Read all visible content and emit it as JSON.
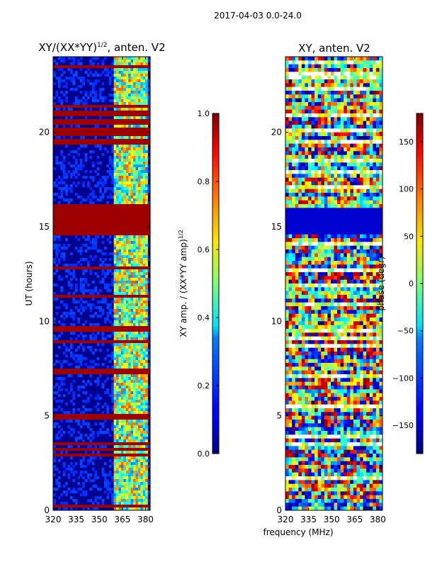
{
  "suptitle": "2017-04-03 0.0-24.0",
  "shared_xlabel": "frequency (MHz)",
  "chart_data": [
    {
      "type": "heatmap",
      "title_main": "XY/(XX*YY)",
      "title_exp": "1/2",
      "title_rest": ", anten. V2",
      "xlabel": "",
      "ylabel": "UT (hours)",
      "xlim": [
        320,
        383
      ],
      "ylim": [
        0,
        24
      ],
      "xticks": [
        320,
        335,
        350,
        365,
        380
      ],
      "yticks": [
        0,
        5,
        10,
        15,
        20
      ],
      "colorbar": {
        "label_main": "XY amp. / (XX*YY amp)",
        "label_exp": "1/2",
        "range": [
          0.0,
          1.0
        ],
        "ticks": [
          "0.0",
          "0.2",
          "0.4",
          "0.6",
          "0.8",
          "1.0"
        ],
        "colormap": "jet"
      },
      "flagged_bands_hours": [
        [
          14.5,
          16.2
        ],
        [
          20.4,
          20.6
        ],
        [
          19.3,
          19.6
        ],
        [
          9.5,
          9.7
        ],
        [
          7.3,
          7.5
        ],
        [
          3.1,
          3.3
        ]
      ],
      "active_band_mhz": [
        360,
        381
      ]
    },
    {
      "type": "heatmap",
      "title_main": "XY, anten. V2",
      "xlabel": "frequency (MHz)",
      "ylabel": "",
      "xlim": [
        320,
        383
      ],
      "ylim": [
        0,
        24
      ],
      "xticks": [
        320,
        335,
        350,
        365,
        380
      ],
      "yticks": [
        0,
        5,
        10,
        15,
        20
      ],
      "colorbar": {
        "label_main": "phase (degr)",
        "range": [
          -180,
          180
        ],
        "ticks": [
          "−150",
          "−100",
          "−50",
          "0",
          "50",
          "100",
          "150"
        ],
        "colormap": "jet"
      },
      "flagged_bands_hours": [
        [
          14.6,
          16.0
        ]
      ]
    }
  ]
}
